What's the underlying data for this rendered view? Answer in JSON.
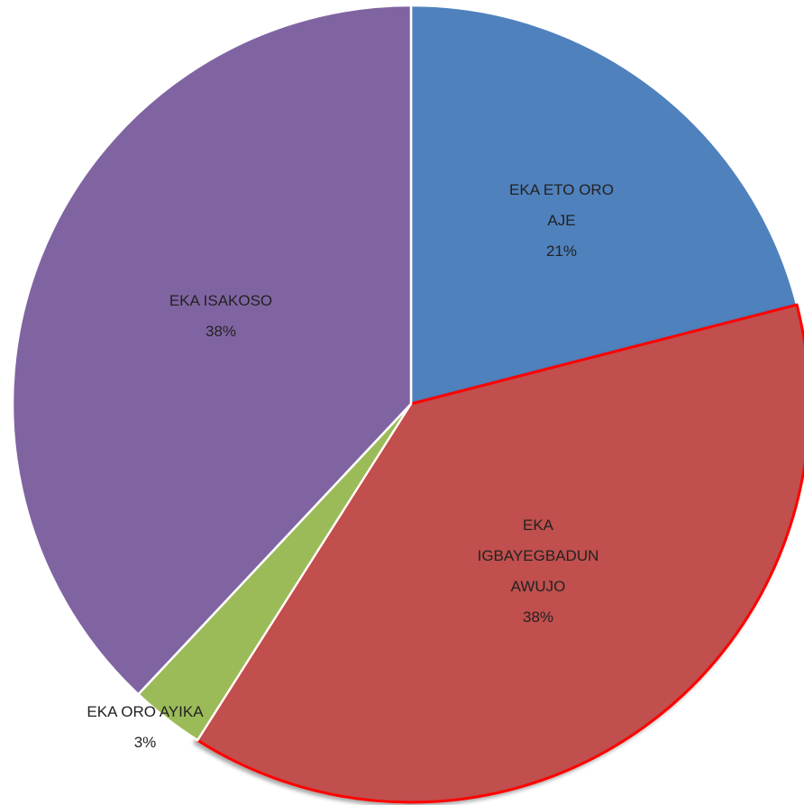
{
  "chart_data": {
    "type": "pie",
    "categories": [
      "EKA ETO ORO AJE",
      "EKA IGBAYEGBADUN AWUJO",
      "EKA ORO AYIKA",
      "EKA ISAKOSO"
    ],
    "values": [
      21,
      38,
      3,
      38
    ],
    "value_labels": [
      "21%",
      "38%",
      "3%",
      "38%"
    ],
    "colors": [
      "#4f81bd",
      "#c0504d",
      "#9bbb59",
      "#8064a2"
    ]
  }
}
